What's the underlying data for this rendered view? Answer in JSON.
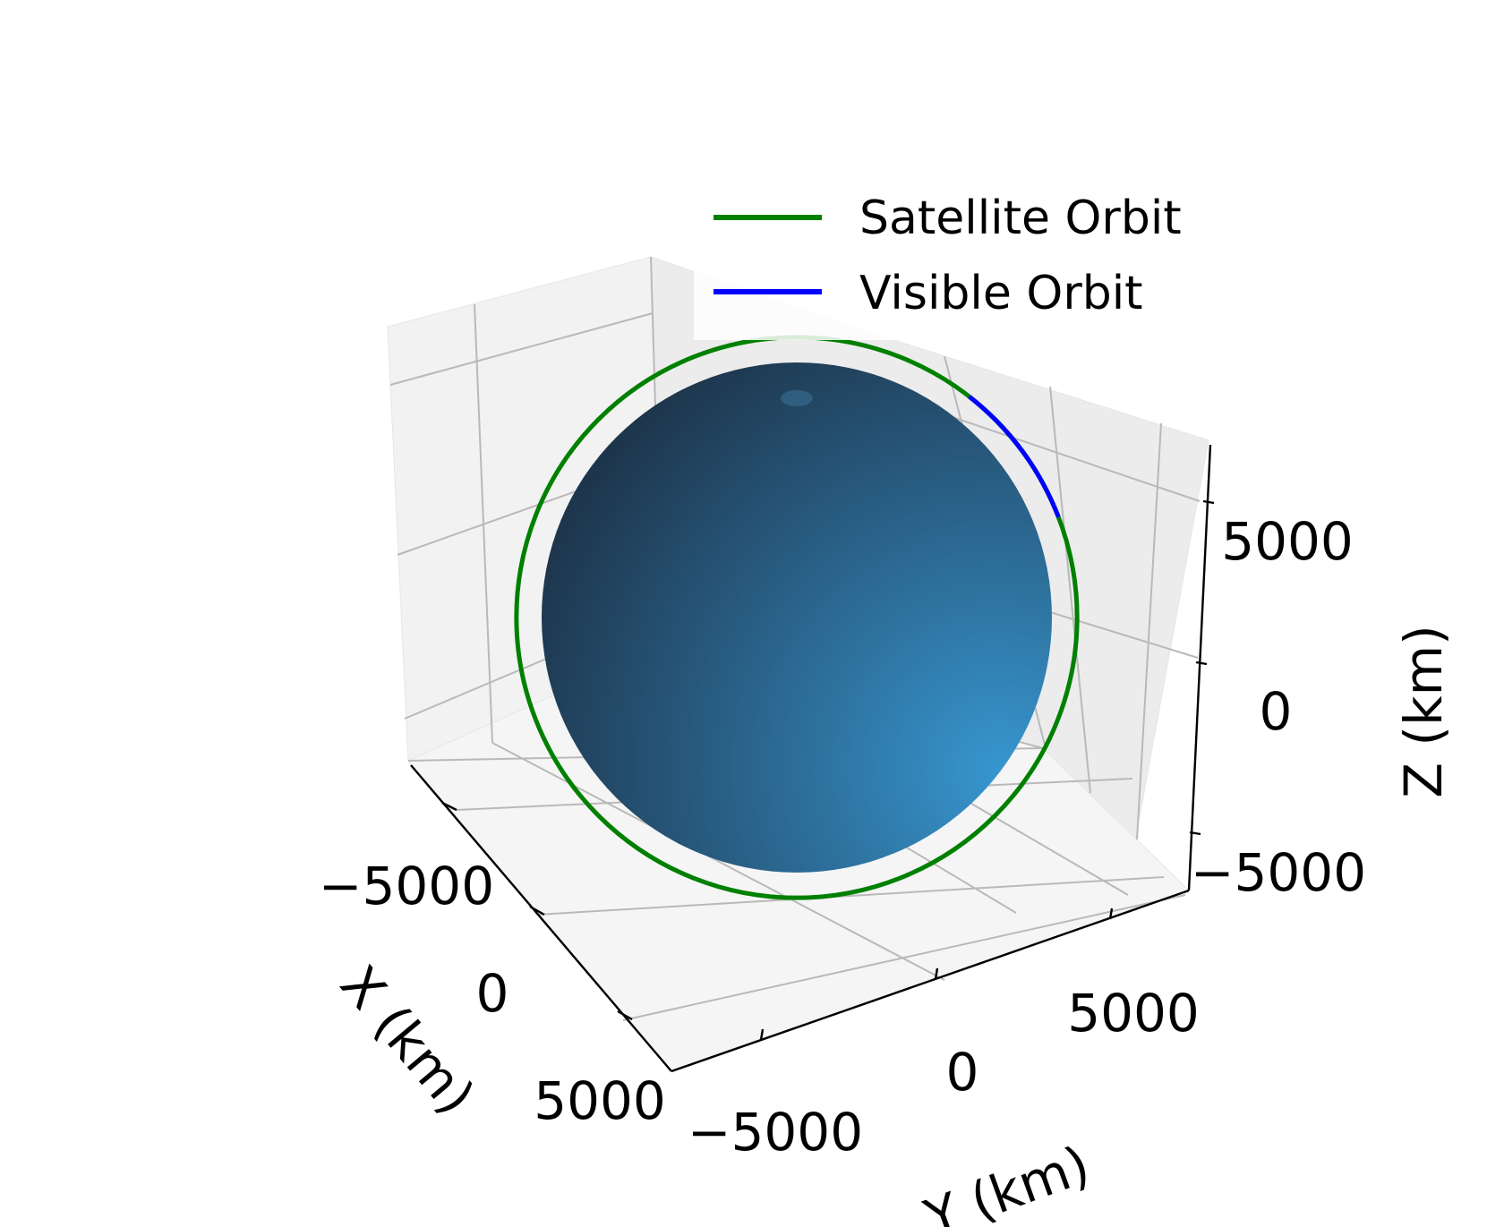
{
  "chart_data": {
    "type": "3d-surface-line",
    "title": "",
    "axes": {
      "x": {
        "label": "X (km)",
        "ticks": [
          -5000,
          0,
          5000
        ],
        "tick_labels": [
          "−5000",
          "0",
          "5000"
        ]
      },
      "y": {
        "label": "Y (km)",
        "ticks": [
          -5000,
          0,
          5000
        ],
        "tick_labels": [
          "−5000",
          "0",
          "5000"
        ]
      },
      "z": {
        "label": "Z (km)",
        "ticks": [
          -5000,
          0,
          5000
        ],
        "tick_labels": [
          "−5000",
          "0",
          "5000"
        ]
      }
    },
    "grid": true,
    "legend_position": "top-right",
    "surface": {
      "kind": "sphere",
      "radius_km": 6371,
      "color": "#2e86c1"
    },
    "series": [
      {
        "name": "Satellite Orbit",
        "kind": "circle",
        "radius_km": 7000,
        "color": "#008000"
      },
      {
        "name": "Visible Orbit",
        "kind": "arc",
        "color": "#0000ff"
      }
    ]
  }
}
